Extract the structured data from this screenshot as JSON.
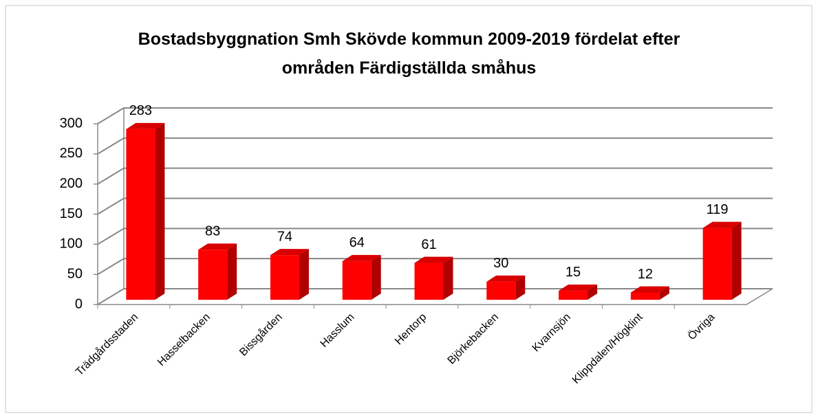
{
  "chart_data": {
    "type": "bar3d",
    "title": "Bostadsbyggnation Smh Skövde kommun  2009-2019 fördelat efter\nområden  Färdigställda småhus",
    "categories": [
      "Trädgårdsstaden",
      "Hasselbacken",
      "Bissgården",
      "Hasslum",
      "Hentorp",
      "Björkebacken",
      "Kvarnsjön",
      "Klippdalen/Högklint",
      "Övriga"
    ],
    "values": [
      283,
      83,
      74,
      64,
      61,
      30,
      15,
      12,
      119
    ],
    "color": "#ff0000",
    "ylim": [
      0,
      300
    ],
    "yticks": [
      0,
      50,
      100,
      150,
      200,
      250,
      300
    ],
    "grid": true
  }
}
